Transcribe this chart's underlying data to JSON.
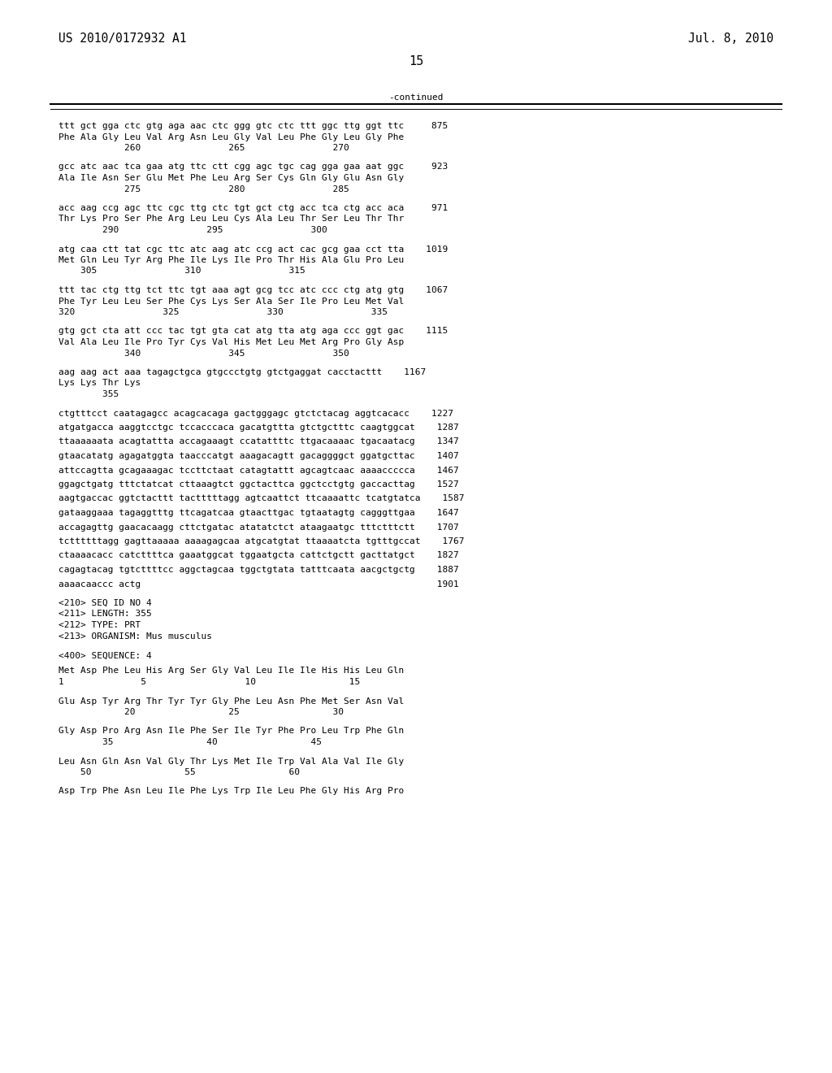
{
  "bg_color": "#ffffff",
  "header_left": "US 2010/0172932 A1",
  "header_right": "Jul. 8, 2010",
  "page_number": "15",
  "continued_label": "-continued",
  "content_blocks": [
    {
      "type": "seq_grouped",
      "lines": [
        "ttt gct gga ctc gtg aga aac ctc ggg gtc ctc ttt ggc ttg ggt ttc     875",
        "Phe Ala Gly Leu Val Arg Asn Leu Gly Val Leu Phe Gly Leu Gly Phe",
        "            260                265                270"
      ]
    },
    {
      "type": "seq_grouped",
      "lines": [
        "gcc atc aac tca gaa atg ttc ctt cgg agc tgc cag gga gaa aat ggc     923",
        "Ala Ile Asn Ser Glu Met Phe Leu Arg Ser Cys Gln Gly Glu Asn Gly",
        "            275                280                285"
      ]
    },
    {
      "type": "seq_grouped",
      "lines": [
        "acc aag ccg agc ttc cgc ttg ctc tgt gct ctg acc tca ctg acc aca     971",
        "Thr Lys Pro Ser Phe Arg Leu Leu Cys Ala Leu Thr Ser Leu Thr Thr",
        "        290                295                300"
      ]
    },
    {
      "type": "seq_grouped",
      "lines": [
        "atg caa ctt tat cgc ttc atc aag atc ccg act cac gcg gaa cct tta    1019",
        "Met Gln Leu Tyr Arg Phe Ile Lys Ile Pro Thr His Ala Glu Pro Leu",
        "    305                310                315"
      ]
    },
    {
      "type": "seq_grouped",
      "lines": [
        "ttt tac ctg ttg tct ttc tgt aaa agt gcg tcc atc ccc ctg atg gtg    1067",
        "Phe Tyr Leu Leu Ser Phe Cys Lys Ser Ala Ser Ile Pro Leu Met Val",
        "320                325                330                335"
      ]
    },
    {
      "type": "seq_grouped",
      "lines": [
        "gtg gct cta att ccc tac tgt gta cat atg tta atg aga ccc ggt gac    1115",
        "Val Ala Leu Ile Pro Tyr Cys Val His Met Leu Met Arg Pro Gly Asp",
        "            340                345                350"
      ]
    },
    {
      "type": "seq_grouped",
      "lines": [
        "aag aag act aaa tagagctgca gtgccctgtg gtctgaggat cacctacttt    1167",
        "Lys Lys Thr Lys",
        "        355"
      ]
    },
    {
      "type": "plain_spaced",
      "lines": [
        "ctgtttcct caatagagcc acagcacaga gactgggagc gtctctacag aggtcacacc    1227",
        "atgatgacca aaggtcctgc tccacccaca gacatgttta gtctgctttc caagtggcat    1287",
        "ttaaaaaata acagtattta accagaaagt ccatattttc ttgacaaaac tgacaatacg    1347",
        "gtaacatatg agagatggta taacccatgt aaagacagtt gacaggggct ggatgcttac    1407",
        "attccagtta gcagaaagac tccttctaat catagtattt agcagtcaac aaaaccccca    1467",
        "ggagctgatg tttctatcat cttaaagtct ggctacttca ggctcctgtg gaccacttag    1527",
        "aagtgaccac ggtctacttt tactttttagg agtcaattct ttcaaaattc tcatgtatca    1587",
        "gataaggaaa tagaggtttg ttcagatcaa gtaacttgac tgtaatagtg cagggttgaa    1647",
        "accagagttg gaacacaagg cttctgatac atatatctct ataagaatgc tttctttctt    1707",
        "tcttttttagg gagttaaaaa aaaagagcaa atgcatgtat ttaaaatcta tgtttgccat    1767",
        "ctaaaacacc catcttttca gaaatggcat tggaatgcta cattctgctt gacttatgct    1827",
        "cagagtacag tgtcttttcc aggctagcaa tggctgtata tatttcaata aacgctgctg    1887",
        "aaaacaaccc actg                                                      1901"
      ]
    },
    {
      "type": "meta",
      "lines": [
        "<210> SEQ ID NO 4",
        "<211> LENGTH: 355",
        "<212> TYPE: PRT",
        "<213> ORGANISM: Mus musculus"
      ]
    },
    {
      "type": "meta",
      "lines": [
        "<400> SEQUENCE: 4"
      ]
    },
    {
      "type": "seq_grouped",
      "lines": [
        "Met Asp Phe Leu His Arg Ser Gly Val Leu Ile Ile His His Leu Gln",
        "1              5                  10                 15"
      ]
    },
    {
      "type": "seq_grouped",
      "lines": [
        "Glu Asp Tyr Arg Thr Tyr Tyr Gly Phe Leu Asn Phe Met Ser Asn Val",
        "            20                 25                 30"
      ]
    },
    {
      "type": "seq_grouped",
      "lines": [
        "Gly Asp Pro Arg Asn Ile Phe Ser Ile Tyr Phe Pro Leu Trp Phe Gln",
        "        35                 40                 45"
      ]
    },
    {
      "type": "seq_grouped",
      "lines": [
        "Leu Asn Gln Asn Val Gly Thr Lys Met Ile Trp Val Ala Val Ile Gly",
        "    50                 55                 60"
      ]
    },
    {
      "type": "seq_grouped",
      "lines": [
        "Asp Trp Phe Asn Leu Ile Phe Lys Trp Ile Leu Phe Gly His Arg Pro"
      ]
    }
  ],
  "font_size_header": 10.5,
  "font_size_body": 8.0,
  "font_size_page": 11,
  "mono_font": "monospace",
  "text_color": "#000000",
  "line_color": "#000000"
}
